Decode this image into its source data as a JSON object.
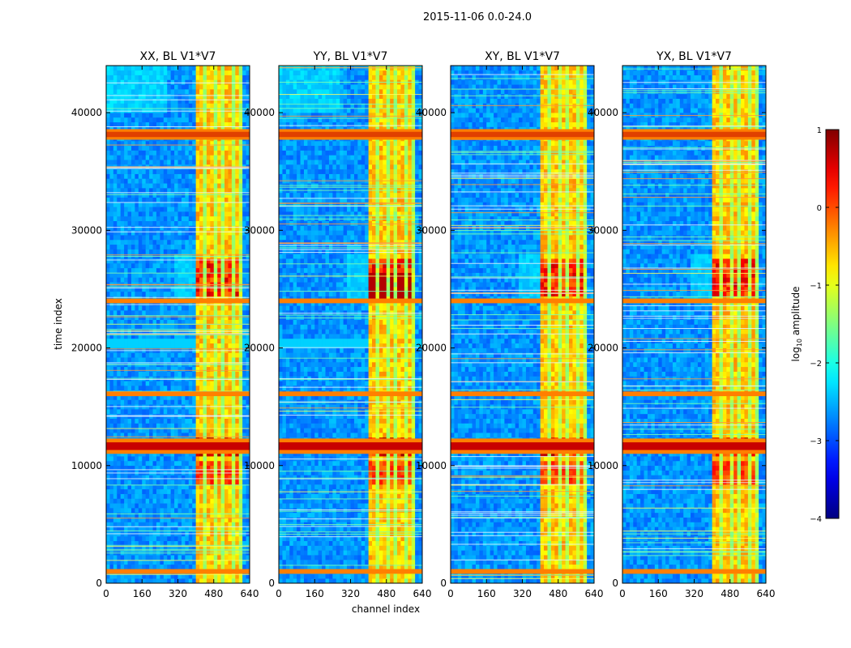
{
  "figure": {
    "suptitle": "2015-11-06 0.0-24.0"
  },
  "colors": {
    "jet": [
      "#00007f",
      "#0000ff",
      "#007fff",
      "#00ffff",
      "#7fff7f",
      "#ffff00",
      "#ff7f00",
      "#ff0000",
      "#7f0000"
    ],
    "orange_band": "#ff7f00",
    "background_blue": "#0a3cff"
  },
  "chart_data": {
    "type": "heatmap",
    "panels": [
      {
        "title": "XX, BL V1*V7",
        "pol": "XX"
      },
      {
        "title": "YY, BL V1*V7",
        "pol": "YY"
      },
      {
        "title": "XY, BL V1*V7",
        "pol": "XY"
      },
      {
        "title": "YX, BL V1*V7",
        "pol": "YX"
      }
    ],
    "xlabel": "channel index",
    "ylabel": "time index",
    "xlim": [
      0,
      640
    ],
    "ylim": [
      0,
      44000
    ],
    "xticks": [
      "0",
      "160",
      "320",
      "480",
      "640"
    ],
    "xtick_values": [
      0,
      160,
      320,
      480,
      640
    ],
    "yticks": [
      "0",
      "10000",
      "20000",
      "30000",
      "40000"
    ],
    "ytick_values": [
      0,
      10000,
      20000,
      30000,
      40000
    ],
    "colorbar": {
      "label_prefix": "log",
      "label_sub": "10",
      "label_suffix": " amplitude",
      "range": [
        -4,
        1
      ],
      "ticks": [
        "1",
        "0",
        "−1",
        "−2",
        "−3",
        "−4"
      ],
      "tick_values": [
        1,
        0,
        -1,
        -2,
        -3,
        -4
      ]
    },
    "signal_channels": [
      400,
      600
    ],
    "signal_bright_channels": [
      [
        405,
        430
      ],
      [
        445,
        475
      ],
      [
        490,
        515
      ],
      [
        535,
        560
      ],
      [
        580,
        598
      ]
    ],
    "flagged_time_bands": [
      {
        "t0": 800,
        "t1": 1200,
        "level": 0.2
      },
      {
        "t0": 11000,
        "t1": 12300,
        "level": 0.6
      },
      {
        "t0": 15900,
        "t1": 16300,
        "level": 0.2
      },
      {
        "t0": 23800,
        "t1": 24200,
        "level": 0.1
      },
      {
        "t0": 37700,
        "t1": 38600,
        "level": 0.3
      }
    ],
    "hot_time_ranges": [
      {
        "t0": 8500,
        "t1": 10500,
        "level": 0.4
      },
      {
        "t0": 11000,
        "t1": 12300,
        "level": 0.8
      },
      {
        "t0": 24500,
        "t1": 27500,
        "level": 0.6
      }
    ]
  }
}
